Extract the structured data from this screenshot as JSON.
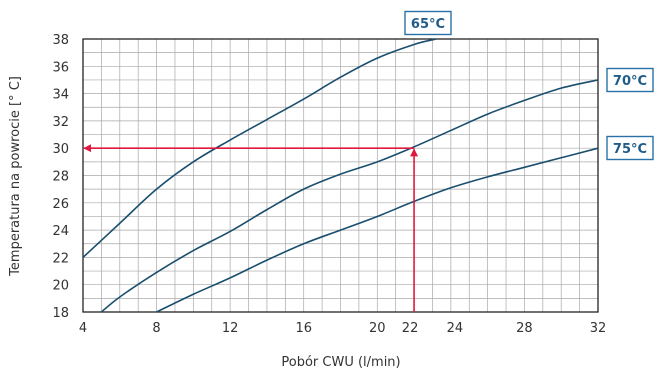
{
  "chart_data": {
    "type": "line",
    "xlabel": "Pobór CWU (l/min)",
    "ylabel": "Temperatura na powrocie [° C]",
    "xlim": [
      4,
      32
    ],
    "ylim": [
      18,
      38
    ],
    "x_ticks": [
      4,
      8,
      12,
      16,
      20,
      22,
      24,
      28,
      32
    ],
    "y_ticks": [
      18,
      20,
      22,
      24,
      26,
      28,
      30,
      32,
      34,
      36,
      38
    ],
    "highlight_x_tick": 22,
    "highlight_y_tick": 30,
    "grid": true,
    "series": [
      {
        "name": "65°C",
        "x": [
          4,
          6,
          8,
          10,
          12,
          14,
          16,
          18,
          20,
          22,
          23.2
        ],
        "y": [
          22,
          24.5,
          27,
          29,
          30.6,
          32.1,
          33.6,
          35.2,
          36.6,
          37.6,
          38
        ]
      },
      {
        "name": "70°C",
        "x": [
          5,
          6,
          8,
          10,
          12,
          14,
          16,
          18,
          20,
          22,
          24,
          26,
          28,
          30,
          32
        ],
        "y": [
          18,
          19.1,
          20.9,
          22.5,
          23.9,
          25.5,
          27,
          28.1,
          29,
          30.1,
          31.3,
          32.5,
          33.5,
          34.4,
          35
        ]
      },
      {
        "name": "75°C",
        "x": [
          8,
          10,
          12,
          14,
          16,
          18,
          20,
          22,
          24,
          26,
          28,
          30,
          32
        ],
        "y": [
          18,
          19.3,
          20.5,
          21.8,
          23,
          24,
          25,
          26.1,
          27.1,
          27.9,
          28.6,
          29.3,
          30
        ]
      }
    ],
    "reading": {
      "x": 22,
      "y": 30
    }
  },
  "colors": {
    "curve": "#1a4e6e",
    "grid": "#a8a8a8",
    "marker": "#e0193f",
    "label_box": "#2a72a6",
    "label_text": "#1f5c87"
  }
}
